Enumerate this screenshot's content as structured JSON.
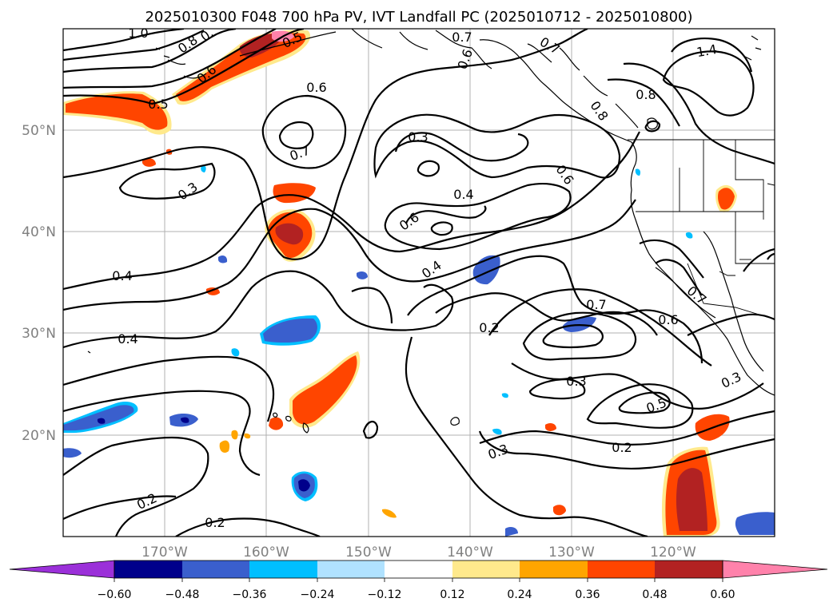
{
  "title": "2025010300 F048 700 hPa PV, IVT Landfall PC (2025010712 - 2025010800)",
  "lat_labels": [
    "50°N",
    "40°N",
    "30°N",
    "20°N"
  ],
  "lon_labels": [
    "170°W",
    "160°W",
    "150°W",
    "140°W",
    "130°W",
    "120°W"
  ],
  "colorbar": {
    "ticks": [
      "−0.60",
      "−0.48",
      "−0.36",
      "−0.24",
      "−0.12",
      "0.12",
      "0.24",
      "0.36",
      "0.48",
      "0.60"
    ],
    "colors": [
      "#9b30d9",
      "#00008b",
      "#3a5fcd",
      "#00bfff",
      "#b0e2ff",
      "#ffffff",
      "#ffe98c",
      "#ffa500",
      "#ff4500",
      "#b22222",
      "#ff82ab"
    ]
  },
  "contour_labels": [
    "1.0",
    "0.8",
    "0.",
    "0.5",
    "0.7",
    "0.6",
    "0.7",
    "1.4",
    "0.6",
    "0.5",
    "0.6",
    "0.8",
    "0.8",
    "0.3",
    "0.7",
    "0.6",
    "0.3",
    "0.4",
    "0.6",
    "0.4",
    "0.4",
    "0.7",
    "0.6",
    "0.7",
    "0.2",
    "0.4",
    "0.3",
    "0.3",
    "0.5",
    "0.3",
    "0.2",
    "0.2",
    "0.2"
  ]
}
